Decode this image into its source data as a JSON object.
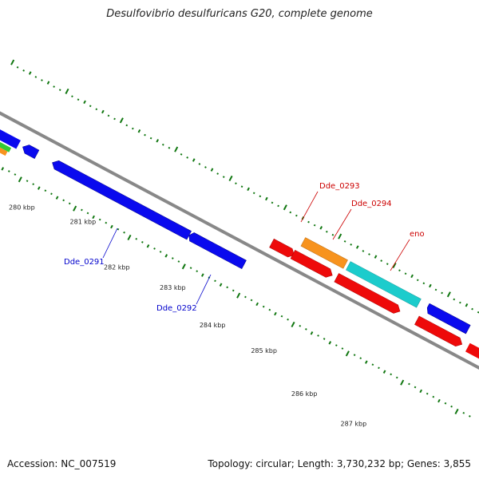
{
  "title": "Desulfovibrio desulfuricans G20, complete genome",
  "footer": {
    "accession": "Accession: NC_007519",
    "summary": "Topology: circular; Length: 3,730,232 bp; Genes: 3,855"
  },
  "scale_labels": [
    "280 kbp",
    "281 kbp",
    "282 kbp",
    "283 kbp",
    "284 kbp",
    "285 kbp",
    "286 kbp",
    "287 kbp"
  ],
  "gene_labels": [
    {
      "text": "Dde_0291",
      "color": "#0000cc"
    },
    {
      "text": "Dde_0292",
      "color": "#0000cc"
    },
    {
      "text": "Dde_0293",
      "color": "#cc0000"
    },
    {
      "text": "Dde_0294",
      "color": "#cc0000"
    },
    {
      "text": "eno",
      "color": "#cc0000"
    }
  ],
  "colors": {
    "backbone": "#888888",
    "tick": "#117711",
    "blue": "#0a0aee",
    "red": "#ee0a0a",
    "orange": "#f7931e",
    "cyan": "#1ccccc",
    "green": "#33cc33"
  }
}
